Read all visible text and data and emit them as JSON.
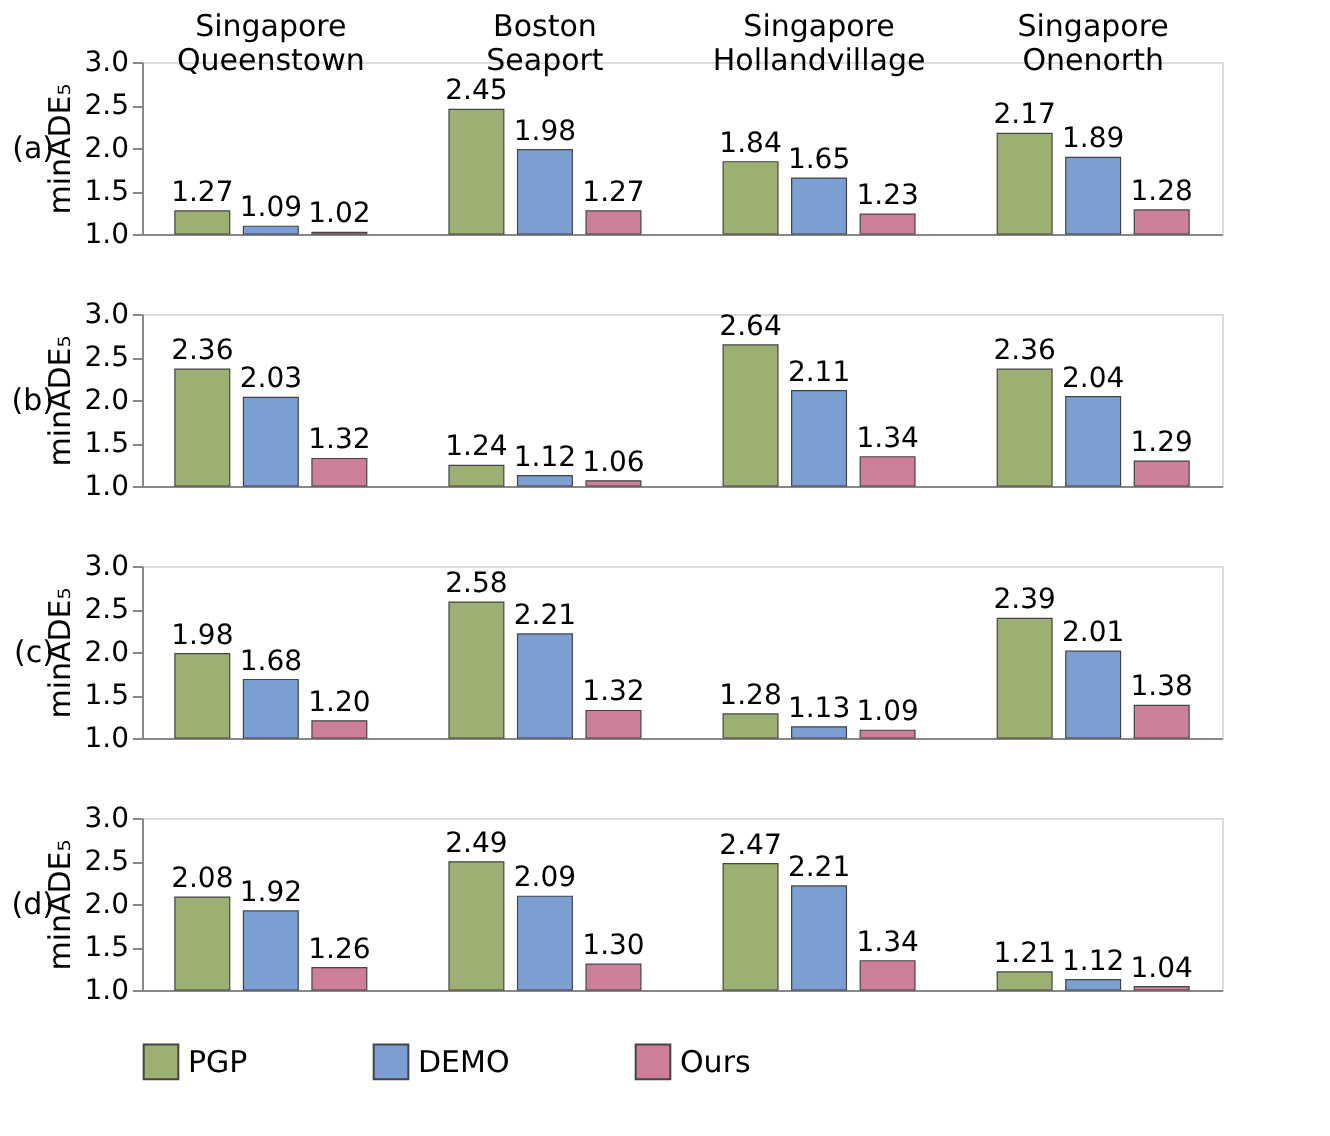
{
  "chart_data": [
    {
      "type": "bar",
      "legend": "bottom",
      "ylabel": "minADE₅",
      "annotations": [
        "(a)"
      ],
      "categories": [
        "Singapore\nQueenstown",
        "Boston\nSeaport",
        "Singapore\nHollandvillage",
        "Singapore\nOnenorth"
      ],
      "data_labels": true,
      "ylim": [
        1.0,
        3.0
      ],
      "yticks": [
        {
          "value": 1.0,
          "label": "1.0"
        },
        {
          "value": 1.5,
          "label": "1.5"
        },
        {
          "value": 2.0,
          "label": "2.0"
        },
        {
          "value": 2.5,
          "label": "2.5"
        },
        {
          "value": 3.0,
          "label": "3.0"
        }
      ],
      "series": [
        {
          "name": "PGP",
          "color": "#9bb072",
          "values": [
            1.27,
            2.45,
            1.84,
            2.17
          ]
        },
        {
          "name": "DEMO",
          "color": "#7b9fd3",
          "values": [
            1.09,
            1.98,
            1.65,
            1.89
          ]
        },
        {
          "name": "Ours",
          "color": "#cc7f97",
          "values": [
            1.02,
            1.27,
            1.23,
            1.28
          ]
        }
      ]
    },
    {
      "type": "bar",
      "ylabel": "minADE₅",
      "annotations": [
        "(b)"
      ],
      "categories": [
        null,
        null,
        null,
        null
      ],
      "tick_labels": "y",
      "data_labels": true,
      "ylim": [
        1.0,
        3.0
      ],
      "yticks": [
        {
          "value": 1.0,
          "label": "1.0"
        },
        {
          "value": 1.5,
          "label": "1.5"
        },
        {
          "value": 2.0,
          "label": "2.0"
        },
        {
          "value": 2.5,
          "label": "2.5"
        },
        {
          "value": 3.0,
          "label": "3.0"
        }
      ],
      "series": [
        {
          "name": "PGP",
          "color": "#9bb072",
          "values": [
            2.36,
            1.24,
            2.64,
            2.36
          ]
        },
        {
          "name": "DEMO",
          "color": "#7b9fd3",
          "values": [
            2.03,
            1.12,
            2.11,
            2.04
          ]
        },
        {
          "name": "Ours",
          "color": "#cc7f97",
          "values": [
            1.32,
            1.06,
            1.34,
            1.29
          ]
        }
      ]
    },
    {
      "type": "bar",
      "ylabel": "minADE₅",
      "annotations": [
        "(c)"
      ],
      "categories": [
        null,
        null,
        null,
        null
      ],
      "tick_labels": "y",
      "data_labels": true,
      "ylim": [
        1.0,
        3.0
      ],
      "yticks": [
        {
          "value": 1.0,
          "label": "1.0"
        },
        {
          "value": 1.5,
          "label": "1.5"
        },
        {
          "value": 2.0,
          "label": "2.0"
        },
        {
          "value": 2.5,
          "label": "2.5"
        },
        {
          "value": 3.0,
          "label": "3.0"
        }
      ],
      "series": [
        {
          "name": "PGP",
          "color": "#9bb072",
          "values": [
            1.98,
            2.58,
            1.28,
            2.39
          ]
        },
        {
          "name": "DEMO",
          "color": "#7b9fd3",
          "values": [
            1.68,
            2.21,
            1.13,
            2.01
          ]
        },
        {
          "name": "Ours",
          "color": "#cc7f97",
          "values": [
            1.2,
            1.32,
            1.09,
            1.38
          ],
          "value_labels": [
            "1.20",
            "1.32",
            "1.09",
            "1.38"
          ]
        }
      ]
    },
    {
      "type": "bar",
      "ylabel": "minADE₅",
      "annotations": [
        "(d)"
      ],
      "categories": [
        null,
        null,
        null,
        null
      ],
      "tick_labels": "y",
      "data_labels": true,
      "ylim": [
        1.0,
        3.0
      ],
      "yticks": [
        {
          "value": 1.0,
          "label": "1.0"
        },
        {
          "value": 1.5,
          "label": "1.5"
        },
        {
          "value": 2.0,
          "label": "2.0"
        },
        {
          "value": 2.5,
          "label": "2.5"
        },
        {
          "value": 3.0,
          "label": "3.0"
        }
      ],
      "series": [
        {
          "name": "PGP",
          "color": "#9bb072",
          "values": [
            2.08,
            2.49,
            2.47,
            1.21
          ]
        },
        {
          "name": "DEMO",
          "color": "#7b9fd3",
          "values": [
            1.92,
            2.09,
            2.21,
            1.12
          ]
        },
        {
          "name": "Ours",
          "color": "#cc7f97",
          "values": [
            1.26,
            1.3,
            1.34,
            1.04
          ],
          "value_labels": [
            "1.26",
            "1.30",
            "1.34",
            "1.04"
          ]
        }
      ]
    }
  ]
}
